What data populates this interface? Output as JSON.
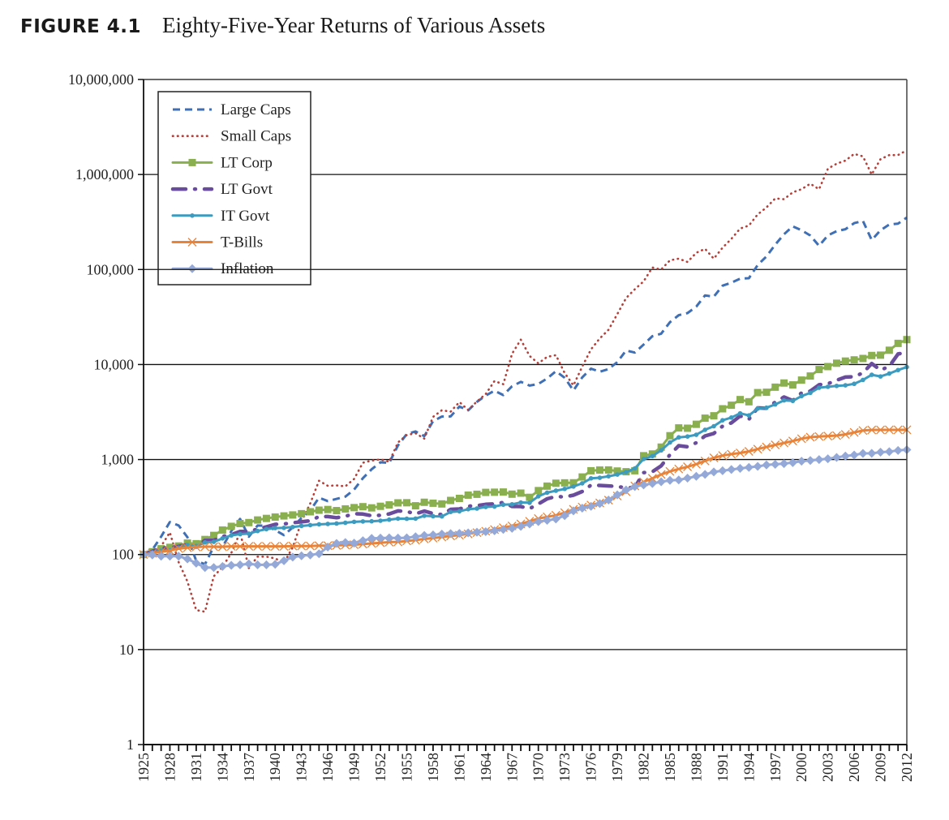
{
  "figure": {
    "number": "FIGURE 4.1",
    "caption": "Eighty-Five-Year Returns of Various Assets"
  },
  "chart_data": {
    "type": "line",
    "title": "Eighty-Five-Year Returns of Various Assets",
    "xlabel": "",
    "ylabel": "",
    "y_scale": "log",
    "ylim": [
      1,
      10000000
    ],
    "y_ticks": [
      1,
      10,
      100,
      1000,
      10000,
      100000,
      1000000,
      10000000
    ],
    "y_tick_labels": [
      "1",
      "10",
      "100",
      "1,000",
      "10,000",
      "100,000",
      "1,000,000",
      "10,000,000"
    ],
    "xlim": [
      1925,
      2012
    ],
    "x_tick_labels": [
      "1925",
      "1928",
      "1931",
      "1934",
      "1937",
      "1940",
      "1943",
      "1946",
      "1949",
      "1952",
      "1955",
      "1958",
      "1961",
      "1964",
      "1967",
      "1970",
      "1973",
      "1976",
      "1979",
      "1982",
      "1985",
      "1988",
      "1991",
      "1994",
      "1997",
      "2000",
      "2003",
      "2006",
      "2009",
      "2012"
    ],
    "grid": "horizontal",
    "legend_position": "top-left",
    "x_start": 1925,
    "series": [
      {
        "name": "Large Caps",
        "color": "#3f6fb5",
        "style": "dashed",
        "marker": "none",
        "values": [
          100,
          112,
          154,
          220,
          202,
          152,
          86,
          79,
          121,
          120,
          177,
          237,
          154,
          202,
          201,
          181,
          160,
          193,
          243,
          291,
          397,
          365,
          385,
          407,
          483,
          636,
          789,
          934,
          924,
          1411,
          1856,
          1978,
          1765,
          2530,
          2832,
          2846,
          3611,
          3295,
          4047,
          4714,
          5301,
          4767,
          5910,
          6564,
          6006,
          6247,
          7141,
          8496,
          7250,
          5331,
          7314,
          9058,
          8408,
          8959,
          10611,
          14051,
          13362,
          16222,
          19874,
          21120,
          27912,
          33067,
          34797,
          40646,
          53446,
          51750,
          67559,
          72741,
          80008,
          81054,
          111392,
          137095,
          182833,
          235089,
          284563,
          258652,
          227913,
          177534,
          228479,
          253337,
          265763,
          307744,
          324653,
          204541,
          258652,
          297620,
          303907,
          352543
        ]
      },
      {
        "name": "Small Caps",
        "color": "#b5403a",
        "style": "dotted",
        "marker": "none",
        "values": [
          100,
          100,
          122,
          171,
          83,
          52,
          26,
          25,
          59,
          74,
          104,
          171,
          72,
          95,
          95,
          91,
          82,
          119,
          224,
          345,
          598,
          529,
          534,
          522,
          625,
          926,
          975,
          1004,
          949,
          1514,
          1814,
          1888,
          1661,
          2812,
          3301,
          3195,
          4030,
          3326,
          4084,
          4881,
          6699,
          6202,
          12994,
          18243,
          12312,
          10294,
          12041,
          12553,
          8123,
          6027,
          9508,
          14424,
          18804,
          23252,
          34000,
          50000,
          62000,
          75000,
          105000,
          100000,
          125000,
          130000,
          120000,
          150000,
          165000,
          130000,
          170000,
          210000,
          270000,
          290000,
          380000,
          450000,
          560000,
          550000,
          650000,
          700000,
          800000,
          700000,
          1150000,
          1300000,
          1400000,
          1650000,
          1550000,
          1000000,
          1450000,
          1600000,
          1600000,
          1800000
        ]
      },
      {
        "name": "LT Corp",
        "color": "#8aaf4f",
        "style": "solid",
        "marker": "square",
        "values": [
          100,
          107,
          115,
          119,
          123,
          132,
          130,
          144,
          159,
          181,
          198,
          212,
          217,
          231,
          240,
          248,
          255,
          261,
          269,
          282,
          293,
          298,
          290,
          302,
          312,
          319,
          310,
          322,
          333,
          350,
          351,
          326,
          355,
          347,
          341,
          371,
          390,
          422,
          431,
          451,
          453,
          455,
          432,
          443,
          400,
          471,
          525,
          563,
          568,
          569,
          655,
          762,
          775,
          777,
          757,
          744,
          762,
          1097,
          1144,
          1351,
          1781,
          2152,
          2136,
          2349,
          2725,
          2886,
          3421,
          3729,
          4274,
          4057,
          5063,
          5107,
          5775,
          6389,
          6103,
          6858,
          7569,
          8856,
          9513,
          10322,
          10870,
          11187,
          11581,
          12450,
          12552,
          14137,
          16689,
          18286
        ]
      },
      {
        "name": "LT Govt",
        "color": "#6a4c9c",
        "style": "dash-dot",
        "marker": "none",
        "values": [
          100,
          108,
          117,
          118,
          122,
          127,
          120,
          141,
          141,
          155,
          162,
          175,
          175,
          185,
          196,
          208,
          210,
          216,
          221,
          227,
          251,
          251,
          244,
          253,
          269,
          267,
          256,
          259,
          268,
          288,
          284,
          268,
          287,
          270,
          263,
          299,
          302,
          323,
          327,
          338,
          341,
          353,
          321,
          320,
          304,
          341,
          386,
          409,
          404,
          422,
          461,
          538,
          534,
          528,
          521,
          501,
          510,
          729,
          744,
          858,
          1125,
          1400,
          1363,
          1500,
          1772,
          1881,
          2248,
          2428,
          2872,
          2653,
          3495,
          3463,
          4016,
          4548,
          4170,
          5029,
          5247,
          6117,
          6279,
          6831,
          7379,
          7451,
          8151,
          10238,
          8713,
          9573,
          12912,
          13376
        ]
      },
      {
        "name": "IT Govt",
        "color": "#3d9bbf",
        "style": "solid",
        "marker": "circle",
        "values": [
          100,
          105,
          110,
          111,
          118,
          126,
          123,
          134,
          136,
          148,
          159,
          164,
          166,
          177,
          185,
          190,
          191,
          195,
          200,
          204,
          208,
          210,
          212,
          216,
          221,
          223,
          224,
          227,
          233,
          239,
          238,
          239,
          256,
          253,
          252,
          281,
          285,
          300,
          305,
          317,
          320,
          335,
          338,
          353,
          351,
          410,
          448,
          470,
          491,
          520,
          562,
          634,
          643,
          667,
          695,
          738,
          806,
          1013,
          1087,
          1250,
          1514,
          1712,
          1747,
          1823,
          2055,
          2242,
          2590,
          2766,
          3063,
          2912,
          3433,
          3508,
          3803,
          4195,
          4137,
          4655,
          5033,
          5701,
          5831,
          5958,
          6043,
          6266,
          6890,
          7797,
          7490,
          8033,
          8747,
          9400
        ]
      },
      {
        "name": "T-Bills",
        "color": "#e8843a",
        "style": "solid",
        "marker": "x",
        "values": [
          100,
          103,
          107,
          110,
          116,
          118,
          120,
          121,
          121,
          121,
          122,
          122,
          122,
          122,
          122,
          122,
          122,
          123,
          123,
          123,
          124,
          124,
          125,
          126,
          127,
          129,
          131,
          133,
          135,
          136,
          139,
          142,
          146,
          149,
          153,
          157,
          160,
          165,
          170,
          176,
          183,
          192,
          200,
          210,
          224,
          239,
          249,
          259,
          276,
          299,
          316,
          332,
          349,
          374,
          413,
          459,
          527,
          582,
          634,
          696,
          750,
          796,
          839,
          893,
          967,
          1043,
          1101,
          1140,
          1173,
          1219,
          1287,
          1355,
          1426,
          1496,
          1566,
          1656,
          1720,
          1748,
          1766,
          1787,
          1841,
          1929,
          2019,
          2048,
          2051,
          2054,
          2054,
          2056
        ]
      },
      {
        "name": "Inflation",
        "color": "#94a9d8",
        "style": "solid",
        "marker": "diamond",
        "values": [
          100,
          99,
          96,
          96,
          96,
          90,
          81,
          73,
          73,
          75,
          77,
          78,
          80,
          78,
          78,
          79,
          86,
          94,
          97,
          99,
          102,
          120,
          131,
          134,
          132,
          140,
          148,
          149,
          150,
          149,
          150,
          154,
          159,
          161,
          164,
          166,
          167,
          169,
          172,
          174,
          178,
          184,
          189,
          198,
          210,
          222,
          229,
          237,
          257,
          288,
          308,
          322,
          344,
          375,
          425,
          478,
          520,
          540,
          560,
          583,
          603,
          610,
          637,
          666,
          697,
          740,
          763,
          785,
          806,
          827,
          848,
          876,
          891,
          905,
          929,
          961,
          976,
          1000,
          1019,
          1053,
          1088,
          1116,
          1161,
          1162,
          1194,
          1211,
          1247,
          1269
        ]
      }
    ]
  }
}
